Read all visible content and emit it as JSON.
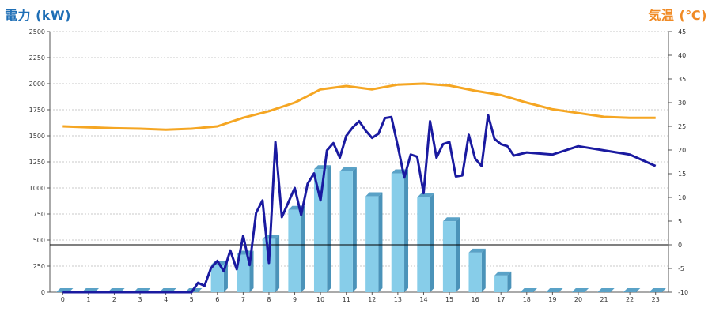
{
  "chart_data": {
    "type": "bar",
    "title_left": "電力 (kW)",
    "title_right": "気温 (℃)",
    "y_left": {
      "min": 0,
      "max": 2500,
      "ticks": [
        "0",
        "250",
        "500",
        "750",
        "1000",
        "1250",
        "1500",
        "1750",
        "2000",
        "2250",
        "2500"
      ]
    },
    "y_right": {
      "min": -10,
      "max": 45,
      "ticks": [
        "-10",
        "-5",
        "0",
        "5",
        "10",
        "15",
        "20",
        "25",
        "30",
        "35",
        "40",
        "45"
      ]
    },
    "categories": [
      "0",
      "1",
      "2",
      "3",
      "4",
      "5",
      "6",
      "7",
      "8",
      "9",
      "10",
      "11",
      "12",
      "13",
      "14",
      "15",
      "16",
      "17",
      "18",
      "19",
      "20",
      "21",
      "22",
      "23"
    ],
    "reference_line_right": 0,
    "grid": true,
    "series": [
      {
        "kind": "bar",
        "axis": "left",
        "color": "#87cde9",
        "values": [
          0,
          0,
          0,
          0,
          0,
          0,
          260,
          360,
          510,
          790,
          1180,
          1160,
          920,
          1140,
          910,
          680,
          380,
          160,
          0,
          0,
          0,
          0,
          0,
          0
        ]
      },
      {
        "kind": "line",
        "axis": "left",
        "color": "#1a1aa0",
        "x": [
          0,
          0.5,
          1,
          1.5,
          2,
          2.5,
          3,
          3.5,
          4,
          4.5,
          5,
          5.25,
          5.5,
          5.75,
          6,
          6.25,
          6.5,
          6.75,
          7,
          7.25,
          7.5,
          7.75,
          8,
          8.25,
          8.5,
          8.75,
          9,
          9.25,
          9.5,
          9.75,
          10,
          10.25,
          10.5,
          10.75,
          11,
          11.25,
          11.5,
          11.75,
          12,
          12.25,
          12.5,
          12.75,
          13,
          13.25,
          13.5,
          13.75,
          14,
          14.25,
          14.5,
          14.75,
          15,
          15.25,
          15.5,
          15.75,
          16,
          16.25,
          16.5,
          16.75,
          17,
          17.25,
          17.5,
          18,
          19,
          20,
          21,
          22,
          23
        ],
        "values": [
          0,
          0,
          0,
          0,
          0,
          0,
          0,
          0,
          0,
          0,
          0,
          90,
          60,
          230,
          300,
          200,
          400,
          220,
          540,
          260,
          760,
          880,
          280,
          1440,
          720,
          860,
          1000,
          740,
          1040,
          1140,
          880,
          1360,
          1430,
          1290,
          1500,
          1580,
          1640,
          1550,
          1480,
          1520,
          1670,
          1680,
          1400,
          1100,
          1320,
          1300,
          950,
          1640,
          1290,
          1420,
          1440,
          1110,
          1120,
          1510,
          1280,
          1210,
          1700,
          1470,
          1420,
          1400,
          1310,
          1340,
          1320,
          1400,
          1360,
          1320,
          1210
        ]
      },
      {
        "kind": "line",
        "axis": "right",
        "color": "#f5a623",
        "values": [
          25,
          24.8,
          24.6,
          24.5,
          24.3,
          24.5,
          25.0,
          26.8,
          28.2,
          30.0,
          32.8,
          33.5,
          32.8,
          33.8,
          34.0,
          33.6,
          32.5,
          31.6,
          30.0,
          28.6,
          27.8,
          27.0,
          26.8,
          26.8
        ]
      }
    ]
  }
}
